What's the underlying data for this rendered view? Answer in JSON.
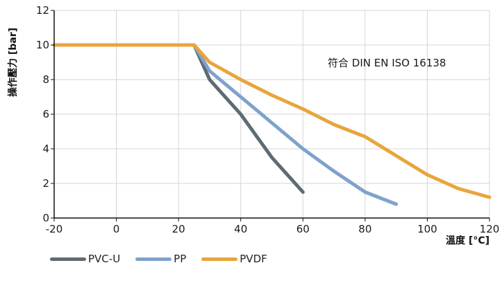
{
  "chart_data": {
    "type": "line",
    "xlabel": "溫度 [°C]",
    "ylabel": "操作壓力 [bar]",
    "annotation": "符合 DIN EN ISO 16138",
    "xlim": [
      -20,
      120
    ],
    "ylim": [
      0,
      12
    ],
    "x_ticks": [
      "-20",
      "0",
      "20",
      "40",
      "60",
      "80",
      "100",
      "120"
    ],
    "y_ticks": [
      "0",
      "2",
      "4",
      "6",
      "8",
      "10",
      "12"
    ],
    "grid": true,
    "legend_position": "bottom-left",
    "series": [
      {
        "name": "PVC-U",
        "color": "#5e6b72",
        "points": [
          [
            10,
            10
          ],
          [
            25,
            10
          ],
          [
            30,
            8
          ],
          [
            40,
            6
          ],
          [
            50,
            3.5
          ],
          [
            60,
            1.5
          ]
        ]
      },
      {
        "name": "PP",
        "color": "#7fa2cc",
        "points": [
          [
            10,
            10
          ],
          [
            25,
            10
          ],
          [
            30,
            8.5
          ],
          [
            40,
            7
          ],
          [
            50,
            5.5
          ],
          [
            60,
            4
          ],
          [
            70,
            2.7
          ],
          [
            80,
            1.5
          ],
          [
            90,
            0.8
          ]
        ]
      },
      {
        "name": "PVDF",
        "color": "#e8a53c",
        "points": [
          [
            -20,
            10
          ],
          [
            25,
            10
          ],
          [
            30,
            9
          ],
          [
            40,
            8
          ],
          [
            50,
            7.1
          ],
          [
            60,
            6.3
          ],
          [
            70,
            5.4
          ],
          [
            80,
            4.7
          ],
          [
            90,
            3.6
          ],
          [
            100,
            2.5
          ],
          [
            110,
            1.7
          ],
          [
            120,
            1.2
          ]
        ]
      }
    ]
  }
}
